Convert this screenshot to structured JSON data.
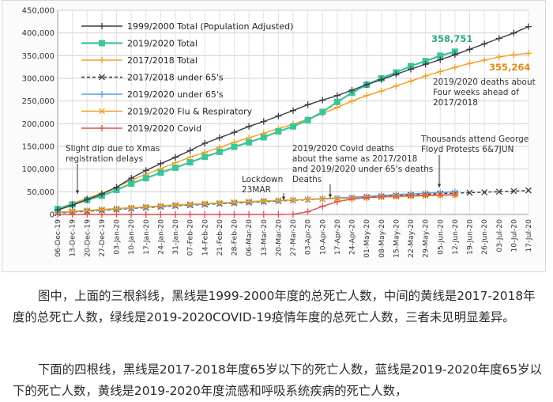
{
  "chart_data": {
    "type": "line",
    "y_ticks": [
      "0",
      "50,000",
      "100,000",
      "150,000",
      "200,000",
      "250,000",
      "300,000",
      "350,000",
      "400,000",
      "450,000"
    ],
    "ylim": [
      0,
      450000
    ],
    "x_labels": [
      "06-Dec-19",
      "13-Dec-19",
      "20-Dec-19",
      "27-Dec-19",
      "03-Jan-20",
      "10-Jan-20",
      "17-Jan-20",
      "24-Jan-20",
      "31-Jan-20",
      "07-Feb-20",
      "14-Feb-20",
      "21-Feb-20",
      "28-Feb-20",
      "06-Mar-20",
      "13-Mar-20",
      "20-Mar-20",
      "27-Mar-20",
      "03-Apr-20",
      "10-Apr-20",
      "17-Apr-20",
      "24-Apr-20",
      "01-May-20",
      "08-May-20",
      "15-May-20",
      "22-May-20",
      "29-May-20",
      "05-Jun-20",
      "12-Jun-20",
      "19-Jun-20",
      "26-Jun-20",
      "03-Jul-20",
      "10-Jul-20",
      "17-Jul-20"
    ],
    "grid": true,
    "legend_placement": "top-left",
    "series": [
      {
        "name": "1999/2000 Total (Population Adjusted)",
        "color": "#3a3a4a",
        "marker": "plus",
        "values": [
          10000,
          20000,
          33000,
          45000,
          60000,
          80000,
          97000,
          112000,
          126000,
          141000,
          157000,
          169000,
          181000,
          194000,
          205000,
          217000,
          229000,
          242000,
          252000,
          262000,
          274000,
          286000,
          297000,
          309000,
          320000,
          331000,
          341000,
          352000,
          364000,
          376000,
          388000,
          400000,
          414000
        ]
      },
      {
        "name": "2019/2020 Total",
        "color": "#3cc49a",
        "marker": "square",
        "values": [
          12000,
          22000,
          32000,
          41000,
          54000,
          68000,
          80000,
          92000,
          103000,
          115000,
          127000,
          138000,
          149000,
          159000,
          170000,
          183000,
          194000,
          208000,
          226000,
          248000,
          268000,
          286000,
          300000,
          313000,
          327000,
          338000,
          350000,
          358751,
          null,
          null,
          null,
          null,
          null
        ]
      },
      {
        "name": "2017/2018 Total",
        "color": "#f0a020",
        "marker": "plus",
        "values": [
          13000,
          24000,
          36000,
          47000,
          60000,
          75000,
          89000,
          101000,
          114000,
          126000,
          137000,
          148000,
          159000,
          169000,
          179000,
          189000,
          199000,
          210000,
          222000,
          236000,
          250000,
          262000,
          272000,
          283000,
          294000,
          305000,
          315000,
          324000,
          333000,
          340000,
          347000,
          352000,
          355264
        ]
      },
      {
        "name": "2017/2018 under 65's",
        "color": "#3a3a4a",
        "marker": "x",
        "dashed": true,
        "values": [
          3000,
          5000,
          7000,
          9000,
          11000,
          13000,
          15000,
          17000,
          19000,
          20500,
          22000,
          23500,
          25000,
          26500,
          28000,
          29500,
          31000,
          32500,
          34000,
          35500,
          37000,
          38500,
          40000,
          41500,
          43000,
          44500,
          46000,
          47000,
          48000,
          49000,
          50000,
          51500,
          53000
        ]
      },
      {
        "name": "2019/2020 under 65's",
        "color": "#5aa0e0",
        "marker": "plus",
        "values": [
          4000,
          6000,
          8000,
          10000,
          12000,
          14000,
          16000,
          18000,
          20000,
          21500,
          23000,
          24500,
          26000,
          27500,
          29000,
          30500,
          32000,
          33500,
          35000,
          36500,
          38000,
          40000,
          42000,
          44000,
          45500,
          47000,
          48500,
          50000,
          null,
          null,
          null,
          null,
          null
        ]
      },
      {
        "name": "2019/2020 Flu & Respiratory",
        "color": "#f0a020",
        "marker": "x",
        "values": [
          5000,
          7000,
          9000,
          11000,
          13000,
          15000,
          17000,
          19000,
          21000,
          22500,
          24000,
          25500,
          27000,
          28500,
          30000,
          31000,
          32000,
          33000,
          34000,
          35000,
          36000,
          37000,
          38000,
          39000,
          40000,
          41000,
          42000,
          42500,
          null,
          null,
          null,
          null,
          null
        ]
      },
      {
        "name": "2019/2020 Covid",
        "color": "#e05050",
        "marker": "plus",
        "values": [
          0,
          0,
          0,
          0,
          0,
          0,
          0,
          0,
          0,
          0,
          0,
          0,
          0,
          0,
          0,
          0,
          500,
          6000,
          18000,
          28000,
          34000,
          37000,
          39000,
          40500,
          41500,
          42500,
          43000,
          43500,
          null,
          null,
          null,
          null,
          null
        ]
      }
    ],
    "annotations": {
      "green_end": "358,751",
      "orange_end": "355,264",
      "ahead": "2019/2020 deaths about Four weeks ahead of 2017/2018",
      "xmas": "Slight dip due to Xmas registration delays",
      "covid_same": "2019/2020 Covid deaths about the same as  2017/2018 and 2019/2020 under 65's deaths",
      "lockdown": "Lockdown 23MAR",
      "protests": "Thousands attend George Floyd Protests 6&7JUN",
      "deaths": "Deaths"
    }
  },
  "article": {
    "para1": "图中，上面的三根斜线，黑线是1999-2000年度的总死亡人数，中间的黄线是2017-2018年度的总死亡人数，绿线是2019-2020COVID-19疫情年度的总死亡人数，三者未见明显差异。",
    "para2": "下面的四根线，黑线是2017-2018年度65岁以下的死亡人数，蓝线是2019-2020年度65岁以下的死亡人数，黄线是2019-2020年度流感和呼吸系统疾病的死亡人数，"
  }
}
